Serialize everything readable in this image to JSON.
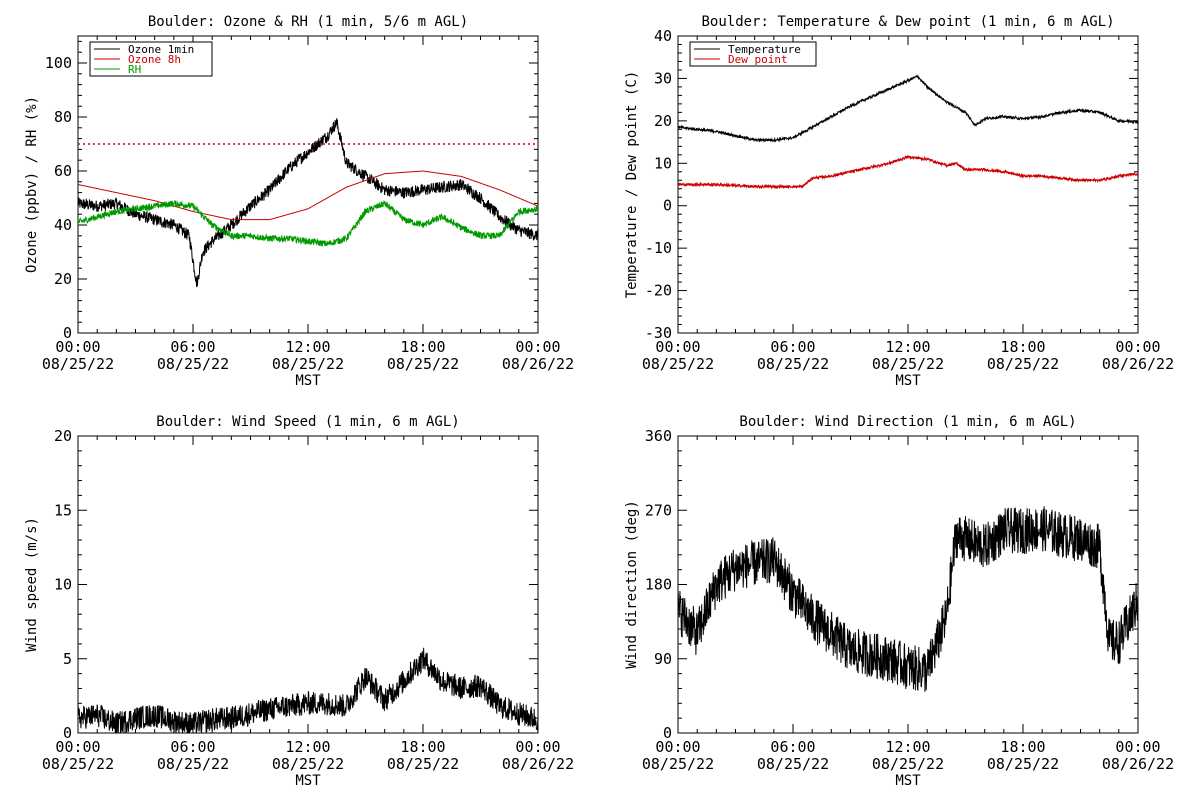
{
  "chart_data": [
    {
      "type": "line",
      "title": "Boulder: Ozone & RH (1 min, 5/6 m AGL)",
      "ylabel": "Ozone (ppbv) / RH (%)",
      "xlabel": "MST",
      "ylim": [
        0,
        110
      ],
      "yticks": [
        0,
        20,
        40,
        60,
        80,
        100
      ],
      "x_tick_labels": [
        {
          "time": "00:00",
          "date": "08/25/22"
        },
        {
          "time": "06:00",
          "date": "08/25/22"
        },
        {
          "time": "12:00",
          "date": "08/25/22"
        },
        {
          "time": "18:00",
          "date": "08/25/22"
        },
        {
          "time": "00:00",
          "date": "08/26/22"
        }
      ],
      "legend_position": "top-left",
      "reference_line": {
        "y": 70,
        "color": "#cc0000",
        "style": "dotted"
      },
      "series": [
        {
          "name": "Ozone 1min",
          "color": "#000000",
          "noise": 2.2,
          "x": [
            0,
            1,
            2,
            3,
            4,
            5,
            5.8,
            6.2,
            6.5,
            7,
            8,
            9,
            10,
            11,
            12,
            13,
            13.5,
            14,
            15,
            16,
            17,
            18,
            19,
            20,
            21,
            22,
            23,
            24
          ],
          "y": [
            48,
            47,
            48,
            44,
            42,
            40,
            36,
            18,
            30,
            34,
            40,
            47,
            53,
            61,
            67,
            73,
            78,
            63,
            58,
            53,
            52,
            53,
            54,
            55,
            50,
            43,
            38,
            36
          ]
        },
        {
          "name": "Ozone 8h",
          "color": "#cc0000",
          "noise": 0,
          "x": [
            0,
            2,
            4,
            6,
            8,
            10,
            12,
            14,
            16,
            18,
            20,
            22,
            24
          ],
          "y": [
            55,
            52,
            49,
            45,
            42,
            42,
            46,
            54,
            59,
            60,
            58,
            53,
            47
          ]
        },
        {
          "name": "RH",
          "color": "#009900",
          "noise": 1.2,
          "x": [
            0,
            1,
            2,
            3,
            4,
            5,
            6,
            7,
            8,
            9,
            10,
            11,
            12,
            13,
            14,
            15,
            16,
            17,
            18,
            19,
            20,
            21,
            22,
            23,
            24
          ],
          "y": [
            41,
            43,
            45,
            46,
            47,
            48,
            47,
            40,
            36,
            36,
            35,
            35,
            34,
            33,
            35,
            45,
            48,
            42,
            40,
            43,
            39,
            36,
            36,
            45,
            46
          ]
        }
      ]
    },
    {
      "type": "line",
      "title": "Boulder: Temperature & Dew point (1 min, 6 m AGL)",
      "ylabel": "Temperature / Dew point (C)",
      "xlabel": "MST",
      "ylim": [
        -30,
        40
      ],
      "yticks": [
        -30,
        -20,
        -10,
        0,
        10,
        20,
        30,
        40
      ],
      "x_tick_labels": [
        {
          "time": "00:00",
          "date": "08/25/22"
        },
        {
          "time": "06:00",
          "date": "08/25/22"
        },
        {
          "time": "12:00",
          "date": "08/25/22"
        },
        {
          "time": "18:00",
          "date": "08/25/22"
        },
        {
          "time": "00:00",
          "date": "08/26/22"
        }
      ],
      "legend_position": "top-left",
      "series": [
        {
          "name": "Temperature",
          "color": "#000000",
          "noise": 0.3,
          "x": [
            0,
            1,
            2,
            3,
            4,
            5,
            6,
            7,
            8,
            9,
            10,
            11,
            12,
            12.5,
            13,
            14,
            15,
            15.5,
            16,
            17,
            18,
            19,
            20,
            21,
            22,
            23,
            24
          ],
          "y": [
            18.5,
            18,
            17.5,
            16.5,
            15.5,
            15.5,
            16,
            18.5,
            21,
            23.5,
            25.5,
            27.5,
            29.5,
            30.5,
            28,
            24.5,
            22,
            19,
            20.5,
            21,
            20.5,
            21,
            22,
            22.5,
            22,
            20,
            19.8
          ]
        },
        {
          "name": "Dew point",
          "color": "#cc0000",
          "noise": 0.3,
          "x": [
            0,
            2,
            4,
            6,
            6.5,
            7,
            8,
            9,
            10,
            11,
            12,
            13,
            14,
            14.5,
            15,
            16,
            17,
            18,
            19,
            20,
            21,
            22,
            23,
            24
          ],
          "y": [
            5,
            5,
            4.5,
            4.5,
            4.5,
            6.5,
            7,
            8,
            9,
            10,
            11.5,
            11,
            9.5,
            10,
            8.5,
            8.5,
            8,
            7,
            7,
            6.5,
            6,
            6,
            7,
            7.5
          ]
        }
      ]
    },
    {
      "type": "line",
      "title": "Boulder: Wind Speed (1 min, 6 m AGL)",
      "ylabel": "Wind speed (m/s)",
      "xlabel": "MST",
      "ylim": [
        0,
        20
      ],
      "yticks": [
        0,
        5,
        10,
        15,
        20
      ],
      "x_tick_labels": [
        {
          "time": "00:00",
          "date": "08/25/22"
        },
        {
          "time": "06:00",
          "date": "08/25/22"
        },
        {
          "time": "12:00",
          "date": "08/25/22"
        },
        {
          "time": "18:00",
          "date": "08/25/22"
        },
        {
          "time": "00:00",
          "date": "08/26/22"
        }
      ],
      "series": [
        {
          "name": "",
          "color": "#000000",
          "noise": 0.8,
          "x": [
            0,
            1,
            2,
            3,
            4,
            5,
            6,
            7,
            8,
            9,
            10,
            11,
            12,
            13,
            14,
            15,
            16,
            17,
            18,
            19,
            20,
            21,
            22,
            23,
            24
          ],
          "y": [
            1,
            1.2,
            0.6,
            1,
            1.2,
            0.8,
            0.6,
            0.9,
            1,
            1.3,
            1.6,
            1.8,
            2,
            2,
            1.8,
            3.8,
            2.2,
            3.5,
            5,
            3.5,
            3,
            3.2,
            1.8,
            1.3,
            0.9
          ]
        }
      ]
    },
    {
      "type": "line",
      "title": "Boulder: Wind Direction (1 min, 6 m AGL)",
      "ylabel": "Wind direction (deg)",
      "xlabel": "MST",
      "ylim": [
        0,
        360
      ],
      "yticks": [
        0,
        90,
        180,
        270,
        360
      ],
      "x_tick_labels": [
        {
          "time": "00:00",
          "date": "08/25/22"
        },
        {
          "time": "06:00",
          "date": "08/25/22"
        },
        {
          "time": "12:00",
          "date": "08/25/22"
        },
        {
          "time": "18:00",
          "date": "08/25/22"
        },
        {
          "time": "00:00",
          "date": "08/26/22"
        }
      ],
      "series": [
        {
          "name": "",
          "color": "#000000",
          "noise": 28,
          "x": [
            0,
            1,
            2,
            3,
            4,
            5,
            6,
            7,
            8,
            9,
            10,
            11,
            12,
            13,
            14,
            14.5,
            15,
            16,
            17,
            18,
            19,
            20,
            21,
            22,
            22.5,
            23,
            24
          ],
          "y": [
            150,
            120,
            180,
            200,
            205,
            210,
            170,
            140,
            120,
            100,
            95,
            90,
            80,
            75,
            140,
            240,
            235,
            225,
            245,
            245,
            248,
            240,
            235,
            225,
            110,
            110,
            160
          ]
        }
      ]
    }
  ]
}
